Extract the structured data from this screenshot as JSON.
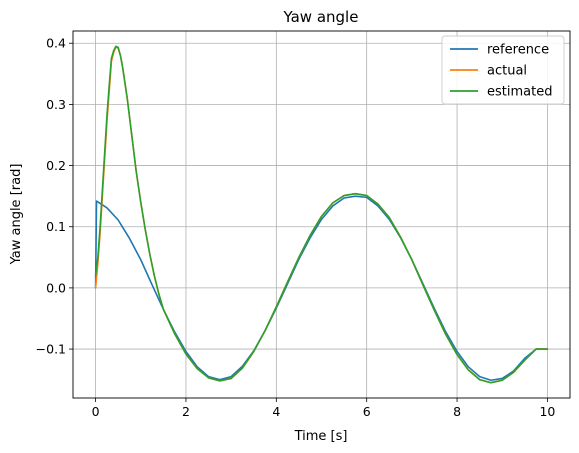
{
  "chart_data": {
    "type": "line",
    "title": "Yaw angle",
    "xlabel": "Time [s]",
    "ylabel": "Yaw angle [rad]",
    "xlim": [
      -0.5,
      10.5
    ],
    "ylim": [
      -0.18,
      0.42
    ],
    "xticks": [
      0,
      2,
      4,
      6,
      8,
      10
    ],
    "xtick_labels": [
      "0",
      "2",
      "4",
      "6",
      "8",
      "10"
    ],
    "yticks": [
      -0.1,
      0.0,
      0.1,
      0.2,
      0.3,
      0.4
    ],
    "ytick_labels": [
      "−0.1",
      "0.0",
      "0.1",
      "0.2",
      "0.3",
      "0.4"
    ],
    "grid": true,
    "legend_position": "top-right",
    "series": [
      {
        "name": "reference",
        "color": "#1f77b4",
        "x": [
          0.0,
          0.02,
          0.25,
          0.5,
          0.75,
          1.0,
          1.25,
          1.5,
          1.75,
          2.0,
          2.25,
          2.5,
          2.75,
          3.0,
          3.25,
          3.5,
          3.75,
          4.0,
          4.25,
          4.5,
          4.75,
          5.0,
          5.25,
          5.5,
          5.75,
          6.0,
          6.25,
          6.5,
          6.75,
          7.0,
          7.25,
          7.5,
          7.75,
          8.0,
          8.25,
          8.5,
          8.75,
          9.0,
          9.25,
          9.5,
          9.75,
          10.0
        ],
        "y": [
          0.0,
          0.142,
          0.131,
          0.111,
          0.081,
          0.046,
          0.005,
          -0.035,
          -0.072,
          -0.104,
          -0.129,
          -0.145,
          -0.15,
          -0.145,
          -0.128,
          -0.103,
          -0.07,
          -0.033,
          0.007,
          0.047,
          0.082,
          0.112,
          0.134,
          0.147,
          0.15,
          0.148,
          0.134,
          0.112,
          0.082,
          0.046,
          0.006,
          -0.034,
          -0.072,
          -0.104,
          -0.129,
          -0.145,
          -0.151,
          -0.148,
          -0.136,
          -0.115,
          -0.1,
          -0.1
        ]
      },
      {
        "name": "actual",
        "color": "#ff7f0e",
        "x": [
          0.0,
          0.05,
          0.1,
          0.15,
          0.2,
          0.25,
          0.3,
          0.35,
          0.4,
          0.45,
          0.5,
          0.55,
          0.6,
          0.7,
          0.8,
          0.9,
          1.0,
          1.1,
          1.2,
          1.3,
          1.4,
          1.5,
          1.75,
          2.0,
          2.25,
          2.5,
          2.75,
          3.0,
          3.25,
          3.5,
          3.75,
          4.0,
          4.25,
          4.5,
          4.75,
          5.0,
          5.25,
          5.5,
          5.75,
          6.0,
          6.25,
          6.5,
          6.75,
          7.0,
          7.25,
          7.5,
          7.75,
          8.0,
          8.25,
          8.5,
          8.75,
          9.0,
          9.25,
          9.5,
          9.75,
          10.0
        ],
        "y": [
          0.0,
          0.04,
          0.09,
          0.15,
          0.21,
          0.27,
          0.32,
          0.37,
          0.385,
          0.394,
          0.392,
          0.38,
          0.36,
          0.31,
          0.25,
          0.19,
          0.14,
          0.095,
          0.055,
          0.02,
          -0.01,
          -0.035,
          -0.075,
          -0.108,
          -0.132,
          -0.147,
          -0.152,
          -0.148,
          -0.131,
          -0.104,
          -0.07,
          -0.031,
          0.01,
          0.05,
          0.086,
          0.117,
          0.139,
          0.151,
          0.154,
          0.151,
          0.137,
          0.115,
          0.083,
          0.046,
          0.004,
          -0.037,
          -0.076,
          -0.109,
          -0.134,
          -0.15,
          -0.155,
          -0.151,
          -0.138,
          -0.118,
          -0.1,
          -0.1
        ]
      },
      {
        "name": "estimated",
        "color": "#2ca02c",
        "x": [
          0.0,
          0.05,
          0.1,
          0.15,
          0.2,
          0.25,
          0.3,
          0.35,
          0.4,
          0.45,
          0.5,
          0.55,
          0.6,
          0.7,
          0.8,
          0.9,
          1.0,
          1.1,
          1.2,
          1.3,
          1.4,
          1.5,
          1.75,
          2.0,
          2.25,
          2.5,
          2.75,
          3.0,
          3.25,
          3.5,
          3.75,
          4.0,
          4.25,
          4.5,
          4.75,
          5.0,
          5.25,
          5.5,
          5.75,
          6.0,
          6.25,
          6.5,
          6.75,
          7.0,
          7.25,
          7.5,
          7.75,
          8.0,
          8.25,
          8.5,
          8.75,
          9.0,
          9.25,
          9.5,
          9.75,
          10.0
        ],
        "y": [
          0.02,
          0.05,
          0.1,
          0.16,
          0.22,
          0.28,
          0.33,
          0.375,
          0.388,
          0.395,
          0.393,
          0.38,
          0.36,
          0.31,
          0.25,
          0.19,
          0.14,
          0.095,
          0.055,
          0.02,
          -0.01,
          -0.035,
          -0.075,
          -0.108,
          -0.132,
          -0.147,
          -0.152,
          -0.148,
          -0.131,
          -0.104,
          -0.07,
          -0.031,
          0.01,
          0.05,
          0.086,
          0.117,
          0.139,
          0.151,
          0.154,
          0.151,
          0.137,
          0.115,
          0.083,
          0.046,
          0.004,
          -0.037,
          -0.076,
          -0.109,
          -0.134,
          -0.15,
          -0.155,
          -0.151,
          -0.138,
          -0.118,
          -0.1,
          -0.1
        ]
      }
    ]
  }
}
